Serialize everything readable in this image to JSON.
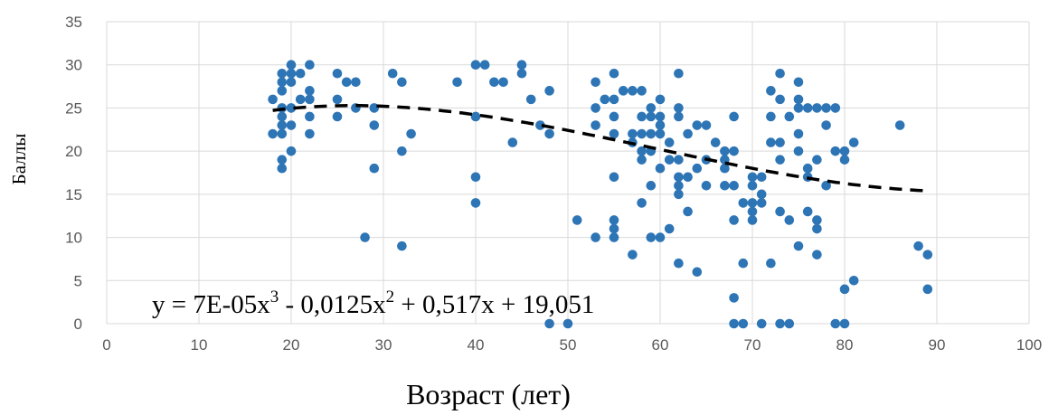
{
  "chart_data": {
    "type": "scatter",
    "title": "",
    "xlabel": "Возраст (лет)",
    "ylabel": "Баллы",
    "xlim": [
      0,
      100
    ],
    "ylim": [
      0,
      35
    ],
    "xticks": [
      "0",
      "10",
      "20",
      "30",
      "40",
      "50",
      "60",
      "70",
      "80",
      "90",
      "100"
    ],
    "yticks": [
      "0",
      "5",
      "10",
      "15",
      "20",
      "25",
      "30",
      "35"
    ],
    "grid": true,
    "legend": "none",
    "colors": {
      "points": "#2e75b6",
      "trend": "#000000",
      "grid": "#d9d9d9"
    },
    "trendline": {
      "type": "polynomial",
      "order": 3,
      "coefficients": [
        7e-05,
        -0.0125,
        0.517,
        19.051
      ],
      "x_range": [
        18,
        89
      ],
      "equation": {
        "base": "y = 7E-05x",
        "sup1": "3",
        "mid1": " - 0,0125x",
        "sup2": "2",
        "tail": " + 0,517x + 19,051"
      }
    },
    "points": [
      [
        18,
        26
      ],
      [
        18,
        22
      ],
      [
        19,
        29
      ],
      [
        19,
        28
      ],
      [
        19,
        27
      ],
      [
        19,
        25
      ],
      [
        19,
        24
      ],
      [
        19,
        23
      ],
      [
        19,
        22
      ],
      [
        19,
        19
      ],
      [
        19,
        18
      ],
      [
        20,
        30
      ],
      [
        20,
        29
      ],
      [
        20,
        28
      ],
      [
        20,
        25
      ],
      [
        20,
        23
      ],
      [
        20,
        20
      ],
      [
        21,
        29
      ],
      [
        21,
        26
      ],
      [
        22,
        30
      ],
      [
        22,
        27
      ],
      [
        22,
        26
      ],
      [
        22,
        24
      ],
      [
        22,
        22
      ],
      [
        25,
        29
      ],
      [
        25,
        26
      ],
      [
        25,
        24
      ],
      [
        26,
        28
      ],
      [
        27,
        28
      ],
      [
        27,
        25
      ],
      [
        28,
        10
      ],
      [
        29,
        25
      ],
      [
        29,
        23
      ],
      [
        29,
        18
      ],
      [
        31,
        29
      ],
      [
        32,
        28
      ],
      [
        32,
        20
      ],
      [
        32,
        9
      ],
      [
        33,
        22
      ],
      [
        38,
        28
      ],
      [
        40,
        30
      ],
      [
        40,
        24
      ],
      [
        40,
        17
      ],
      [
        40,
        14
      ],
      [
        41,
        30
      ],
      [
        42,
        28
      ],
      [
        43,
        28
      ],
      [
        44,
        21
      ],
      [
        45,
        30
      ],
      [
        45,
        29
      ],
      [
        46,
        26
      ],
      [
        47,
        23
      ],
      [
        48,
        27
      ],
      [
        48,
        22
      ],
      [
        48,
        0
      ],
      [
        50,
        0
      ],
      [
        51,
        12
      ],
      [
        53,
        28
      ],
      [
        53,
        25
      ],
      [
        53,
        23
      ],
      [
        53,
        10
      ],
      [
        54,
        26
      ],
      [
        55,
        29
      ],
      [
        55,
        26
      ],
      [
        55,
        24
      ],
      [
        55,
        22
      ],
      [
        55,
        17
      ],
      [
        55,
        12
      ],
      [
        55,
        11
      ],
      [
        55,
        10
      ],
      [
        56,
        27
      ],
      [
        57,
        27
      ],
      [
        57,
        22
      ],
      [
        57,
        21
      ],
      [
        57,
        8
      ],
      [
        58,
        27
      ],
      [
        58,
        24
      ],
      [
        58,
        22
      ],
      [
        58,
        20
      ],
      [
        58,
        19
      ],
      [
        58,
        14
      ],
      [
        59,
        25
      ],
      [
        59,
        24
      ],
      [
        59,
        22
      ],
      [
        59,
        20
      ],
      [
        59,
        16
      ],
      [
        59,
        10
      ],
      [
        60,
        26
      ],
      [
        60,
        24
      ],
      [
        60,
        23
      ],
      [
        60,
        22
      ],
      [
        60,
        18
      ],
      [
        60,
        10
      ],
      [
        61,
        21
      ],
      [
        61,
        19
      ],
      [
        61,
        11
      ],
      [
        62,
        29
      ],
      [
        62,
        25
      ],
      [
        62,
        24
      ],
      [
        62,
        19
      ],
      [
        62,
        17
      ],
      [
        62,
        16
      ],
      [
        62,
        15
      ],
      [
        62,
        7
      ],
      [
        63,
        22
      ],
      [
        63,
        17
      ],
      [
        63,
        13
      ],
      [
        64,
        23
      ],
      [
        64,
        18
      ],
      [
        64,
        6
      ],
      [
        65,
        23
      ],
      [
        65,
        19
      ],
      [
        65,
        16
      ],
      [
        66,
        21
      ],
      [
        67,
        20
      ],
      [
        67,
        19
      ],
      [
        67,
        18
      ],
      [
        67,
        16
      ],
      [
        68,
        24
      ],
      [
        68,
        20
      ],
      [
        68,
        16
      ],
      [
        68,
        12
      ],
      [
        68,
        3
      ],
      [
        68,
        0
      ],
      [
        69,
        14
      ],
      [
        69,
        7
      ],
      [
        69,
        0
      ],
      [
        70,
        17
      ],
      [
        70,
        16
      ],
      [
        70,
        14
      ],
      [
        70,
        13
      ],
      [
        70,
        12
      ],
      [
        71,
        17
      ],
      [
        71,
        15
      ],
      [
        71,
        14
      ],
      [
        71,
        0
      ],
      [
        72,
        27
      ],
      [
        72,
        24
      ],
      [
        72,
        21
      ],
      [
        72,
        7
      ],
      [
        73,
        29
      ],
      [
        73,
        26
      ],
      [
        73,
        21
      ],
      [
        73,
        19
      ],
      [
        73,
        13
      ],
      [
        73,
        0
      ],
      [
        74,
        24
      ],
      [
        74,
        12
      ],
      [
        74,
        0
      ],
      [
        75,
        28
      ],
      [
        75,
        26
      ],
      [
        75,
        25
      ],
      [
        75,
        22
      ],
      [
        75,
        20
      ],
      [
        75,
        9
      ],
      [
        76,
        25
      ],
      [
        76,
        18
      ],
      [
        76,
        17
      ],
      [
        76,
        13
      ],
      [
        77,
        25
      ],
      [
        77,
        19
      ],
      [
        77,
        12
      ],
      [
        77,
        11
      ],
      [
        77,
        8
      ],
      [
        78,
        25
      ],
      [
        78,
        23
      ],
      [
        78,
        16
      ],
      [
        79,
        25
      ],
      [
        79,
        20
      ],
      [
        79,
        0
      ],
      [
        80,
        20
      ],
      [
        80,
        19
      ],
      [
        80,
        4
      ],
      [
        80,
        0
      ],
      [
        81,
        21
      ],
      [
        81,
        5
      ],
      [
        86,
        23
      ],
      [
        88,
        9
      ],
      [
        89,
        8
      ],
      [
        89,
        4
      ]
    ]
  }
}
